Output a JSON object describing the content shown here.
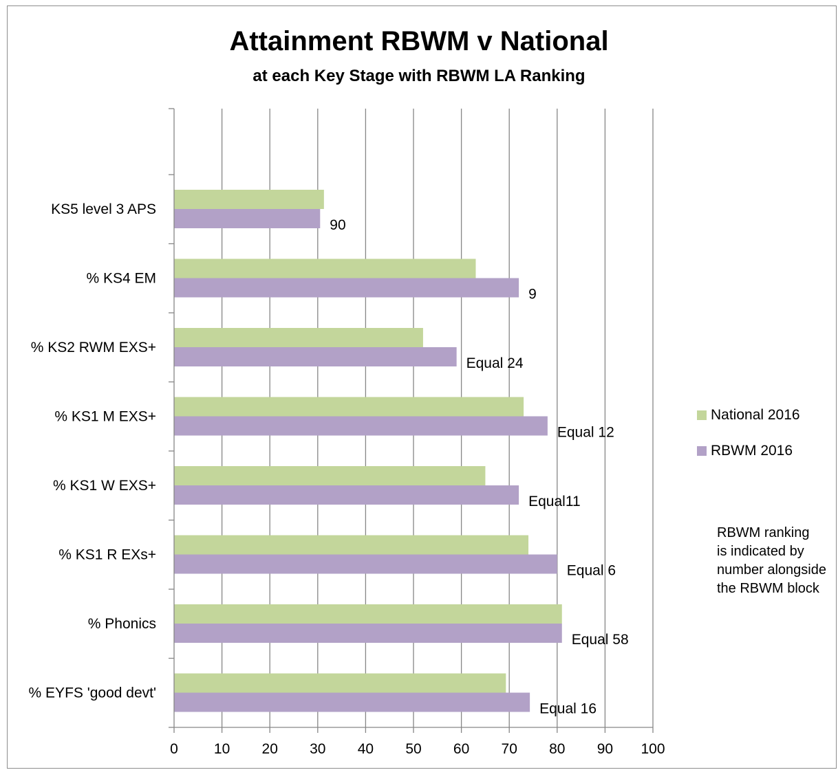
{
  "colors": {
    "national": "#c3d69b",
    "rbwm": "#b2a1c7",
    "grid": "#868686",
    "axis": "#868686"
  },
  "chart_data": {
    "type": "bar",
    "orientation": "horizontal",
    "title": "Attainment RBWM v National",
    "subtitle": "at each Key Stage with RBWM LA Ranking",
    "categories": [
      "KS5 level 3 APS",
      "% KS4 EM",
      "% KS2 RWM EXS+",
      "% KS1 M EXS+",
      "% KS1 W EXS+",
      "% KS1  R EXs+",
      "% Phonics",
      "% EYFS 'good devt'"
    ],
    "series": [
      {
        "name": "National 2016",
        "values": [
          31.3,
          63,
          52,
          73,
          65,
          74,
          81,
          69.3
        ]
      },
      {
        "name": "RBWM 2016",
        "values": [
          30.5,
          72,
          59,
          78,
          72,
          80,
          81,
          74.3
        ]
      }
    ],
    "bar_labels": [
      "90",
      "9",
      "Equal 24",
      "Equal 12",
      "Equal11",
      "Equal 6",
      "Equal 58",
      "Equal 16"
    ],
    "x_ticks": [
      "0",
      "10",
      "20",
      "30",
      "40",
      "50",
      "60",
      "70",
      "80",
      "90",
      "100"
    ],
    "xlim": [
      0,
      100
    ],
    "grid": true,
    "legend_position": "right"
  },
  "legend": {
    "items": [
      "National 2016",
      "RBWM 2016"
    ]
  },
  "note": {
    "lines": [
      "RBWM ranking",
      "is indicated by",
      "number  alongside",
      "the RBWM block"
    ]
  }
}
